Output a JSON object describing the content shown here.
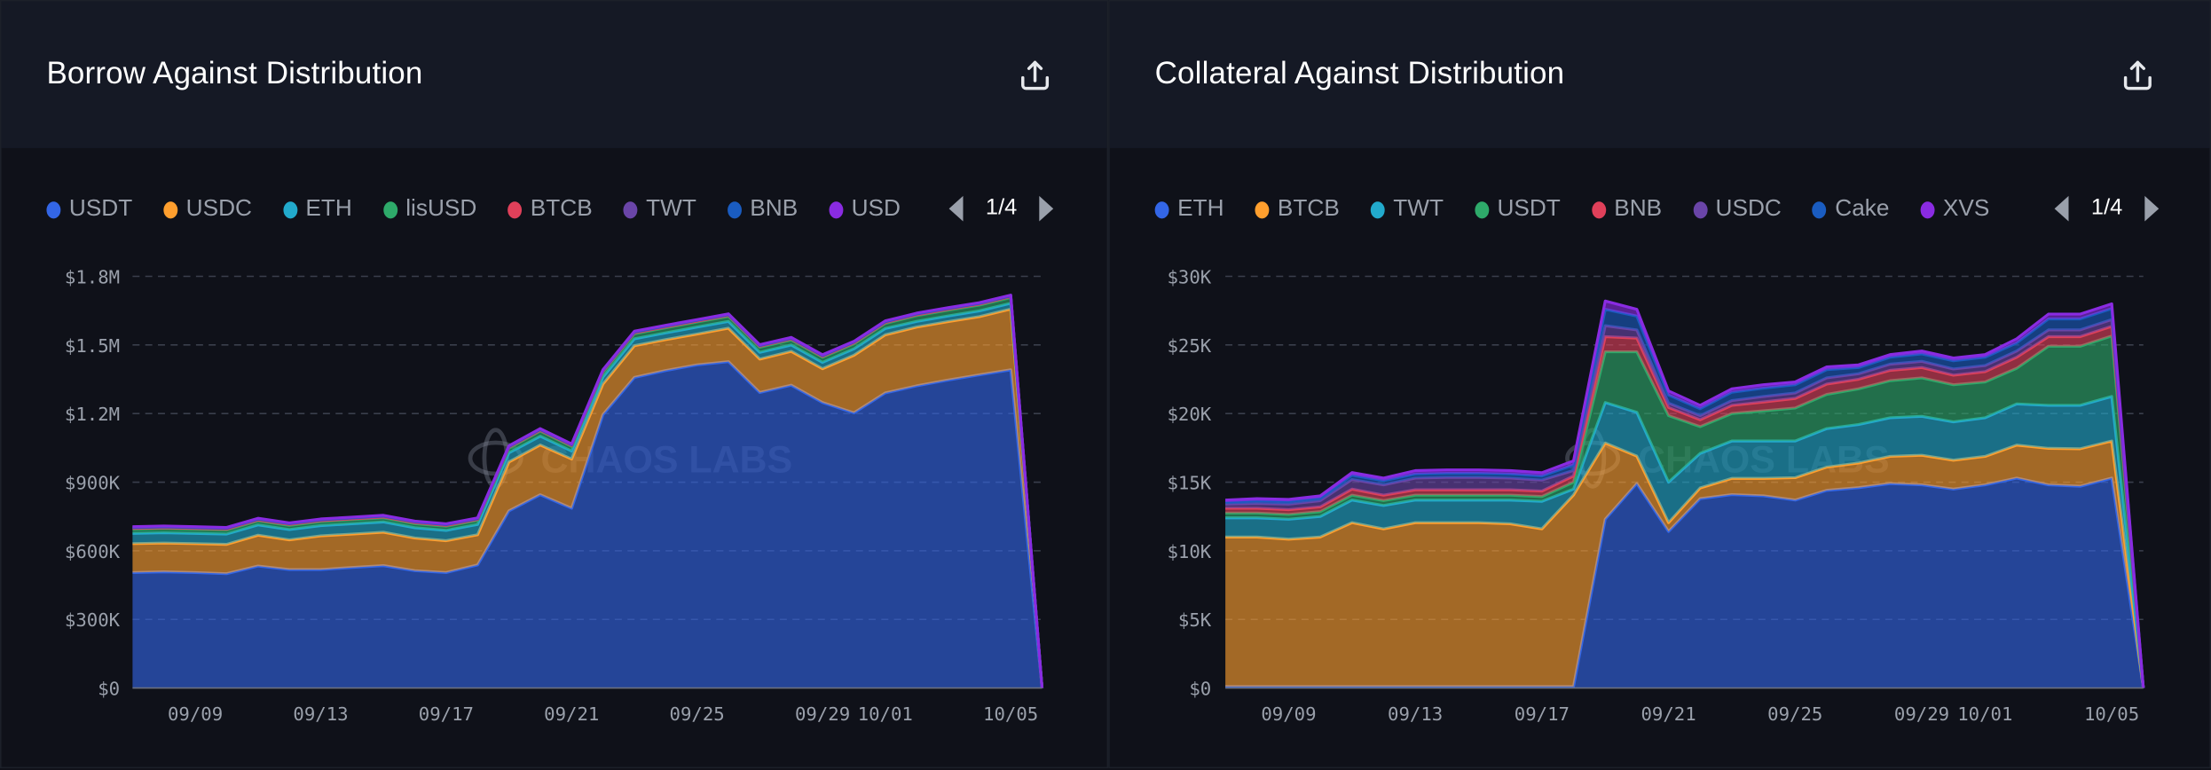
{
  "panels": [
    {
      "title": "Borrow Against Distribution",
      "export_icon": "share-upload-icon",
      "legend_page": "1/4",
      "watermark": "CHAOS LABS",
      "chart_data": {
        "type": "area",
        "stacked": true,
        "x": [
          "09/07",
          "09/08",
          "09/09",
          "09/10",
          "09/11",
          "09/12",
          "09/13",
          "09/14",
          "09/15",
          "09/16",
          "09/17",
          "09/18",
          "09/19",
          "09/20",
          "09/21",
          "09/22",
          "09/23",
          "09/24",
          "09/25",
          "09/26",
          "09/27",
          "09/28",
          "09/29",
          "09/30",
          "10/01",
          "10/02",
          "10/03",
          "10/04",
          "10/05",
          "10/06"
        ],
        "xticks": [
          "09/09",
          "09/13",
          "09/17",
          "09/21",
          "09/25",
          "09/29",
          "10/01",
          "10/05"
        ],
        "yticks": [
          0,
          300000,
          600000,
          900000,
          1200000,
          1500000,
          1800000
        ],
        "ytick_labels": [
          "$0",
          "$300K",
          "$600K",
          "$900K",
          "$1.2M",
          "$1.5M",
          "$1.8M"
        ],
        "ylim": [
          0,
          1800000
        ],
        "grid": true,
        "legend": "top",
        "series": [
          {
            "name": "USDT",
            "color": "#3366e6",
            "values": [
              505000,
              508000,
              505000,
              500000,
              533000,
              518000,
              518000,
              527000,
              535000,
              513000,
              505000,
              538000,
              774000,
              845000,
              786000,
              1195000,
              1358000,
              1388000,
              1413000,
              1427000,
              1292000,
              1324000,
              1248000,
              1203000,
              1290000,
              1321000,
              1346000,
              1369000,
              1391000,
              0
            ]
          },
          {
            "name": "USDC",
            "color": "#ff9f2e",
            "values": [
              126000,
              126000,
              126000,
              128000,
              135000,
              130000,
              147000,
              146000,
              146000,
              143000,
              139000,
              132000,
              214000,
              218000,
              215000,
              134000,
              139000,
              135000,
              135000,
              146000,
              146000,
              148000,
              148000,
              252000,
              254000,
              257000,
              256000,
              255000,
              266000,
              0
            ]
          },
          {
            "name": "ETH",
            "color": "#22aacc",
            "values": [
              45000,
              45000,
              45000,
              45000,
              45000,
              45000,
              45000,
              45000,
              45000,
              45000,
              45000,
              45000,
              40000,
              38000,
              35000,
              30000,
              30000,
              30000,
              30000,
              30000,
              30000,
              28000,
              28000,
              28000,
              28000,
              25000,
              25000,
              25000,
              25000,
              0
            ]
          },
          {
            "name": "lisUSD",
            "color": "#2eaa6a",
            "values": [
              18000,
              18000,
              18000,
              18000,
              18000,
              18000,
              18000,
              18000,
              18000,
              18000,
              18000,
              18000,
              20000,
              22000,
              20000,
              22000,
              22000,
              22000,
              22000,
              22000,
              22000,
              22000,
              22000,
              22000,
              22000,
              25000,
              25000,
              25000,
              25000,
              0
            ]
          },
          {
            "name": "BTCB",
            "color": "#e0405a",
            "values": [
              4000,
              4000,
              4000,
              4000,
              4000,
              4000,
              4000,
              4000,
              4000,
              4000,
              4000,
              4000,
              4000,
              4000,
              4000,
              4000,
              4000,
              4000,
              4000,
              4000,
              4000,
              4000,
              4000,
              4000,
              4000,
              4000,
              4000,
              4000,
              4000,
              0
            ]
          },
          {
            "name": "TWT",
            "color": "#6a45a8",
            "values": [
              3000,
              3000,
              3000,
              3000,
              3000,
              3000,
              3000,
              3000,
              3000,
              3000,
              3000,
              3000,
              3000,
              3000,
              3000,
              3000,
              3000,
              3000,
              3000,
              3000,
              3000,
              3000,
              3000,
              3000,
              3000,
              3000,
              3000,
              3000,
              3000,
              0
            ]
          },
          {
            "name": "BNB",
            "color": "#1a5cc0",
            "values": [
              2000,
              2000,
              2000,
              2000,
              2000,
              2000,
              2000,
              2000,
              2000,
              2000,
              2000,
              2000,
              2000,
              2000,
              2000,
              2000,
              2000,
              2000,
              2000,
              2000,
              2000,
              2000,
              2000,
              2000,
              2000,
              2000,
              2000,
              2000,
              2000,
              0
            ]
          },
          {
            "name": "USD",
            "color": "#8a2be2",
            "values": [
              2000,
              2000,
              2000,
              2000,
              2000,
              2000,
              2000,
              2000,
              2000,
              2000,
              2000,
              2000,
              2000,
              2000,
              2000,
              2000,
              2000,
              2000,
              2000,
              2000,
              2000,
              2000,
              2000,
              2000,
              2000,
              2000,
              2000,
              2000,
              2000,
              0
            ]
          }
        ]
      }
    },
    {
      "title": "Collateral Against Distribution",
      "export_icon": "share-upload-icon",
      "legend_page": "1/4",
      "watermark": "CHAOS LABS",
      "chart_data": {
        "type": "area",
        "stacked": true,
        "x": [
          "09/07",
          "09/08",
          "09/09",
          "09/10",
          "09/11",
          "09/12",
          "09/13",
          "09/14",
          "09/15",
          "09/16",
          "09/17",
          "09/18",
          "09/19",
          "09/20",
          "09/21",
          "09/22",
          "09/23",
          "09/24",
          "09/25",
          "09/26",
          "09/27",
          "09/28",
          "09/29",
          "09/30",
          "10/01",
          "10/02",
          "10/03",
          "10/04",
          "10/05",
          "10/06"
        ],
        "xticks": [
          "09/09",
          "09/13",
          "09/17",
          "09/21",
          "09/25",
          "09/29",
          "10/01",
          "10/05"
        ],
        "yticks": [
          0,
          5000,
          10000,
          15000,
          20000,
          25000,
          30000
        ],
        "ytick_labels": [
          "$0",
          "$5K",
          "$10K",
          "$15K",
          "$20K",
          "$25K",
          "$30K"
        ],
        "ylim": [
          0,
          30000
        ],
        "grid": true,
        "legend": "top",
        "series": [
          {
            "name": "ETH",
            "color": "#3366e6",
            "values": [
              100,
              100,
              100,
              100,
              100,
              100,
              100,
              100,
              100,
              100,
              100,
              100,
              12300,
              14900,
              11400,
              13800,
              14100,
              14000,
              13700,
              14400,
              14600,
              14900,
              14800,
              14500,
              14800,
              15300,
              14800,
              14700,
              15300,
              0
            ]
          },
          {
            "name": "BTCB",
            "color": "#ff9f2e",
            "values": [
              10900,
              10900,
              10750,
              10900,
              11950,
              11500,
              11950,
              11950,
              11950,
              11870,
              11500,
              13970,
              5560,
              2000,
              650,
              780,
              1180,
              1280,
              1630,
              1700,
              1800,
              1980,
              2160,
              2100,
              2080,
              2400,
              2670,
              2740,
              2700,
              0
            ]
          },
          {
            "name": "TWT",
            "color": "#22aacc",
            "values": [
              1400,
              1400,
              1450,
              1500,
              1650,
              1700,
              1650,
              1650,
              1650,
              1730,
              2000,
              430,
              2940,
              3200,
              2950,
              2520,
              2720,
              2720,
              2670,
              2800,
              2800,
              2820,
              2840,
              2800,
              2820,
              3000,
              3130,
              3160,
              3250,
              0
            ]
          },
          {
            "name": "USDT",
            "color": "#2eaa6a",
            "values": [
              350,
              350,
              350,
              350,
              350,
              350,
              350,
              350,
              350,
              350,
              350,
              500,
              3700,
              4400,
              4850,
              1950,
              2000,
              2200,
              2400,
              2500,
              2600,
              2700,
              2800,
              2700,
              2600,
              2600,
              4300,
              4300,
              4400,
              0
            ]
          },
          {
            "name": "BNB",
            "color": "#e0405a",
            "values": [
              350,
              350,
              350,
              350,
              450,
              400,
              400,
              400,
              400,
              400,
              400,
              450,
              1100,
              1000,
              600,
              500,
              600,
              650,
              700,
              750,
              700,
              750,
              750,
              700,
              750,
              800,
              700,
              700,
              700,
              0
            ]
          },
          {
            "name": "USDC",
            "color": "#6a45a8",
            "values": [
              300,
              350,
              400,
              450,
              700,
              750,
              850,
              900,
              900,
              850,
              800,
              400,
              800,
              600,
              300,
              300,
              350,
              400,
              400,
              450,
              400,
              450,
              450,
              450,
              450,
              450,
              500,
              500,
              500,
              0
            ]
          },
          {
            "name": "Cake",
            "color": "#1a5cc0",
            "values": [
              150,
              200,
              200,
              200,
              300,
              300,
              300,
              300,
              300,
              300,
              300,
              400,
              1200,
              1000,
              600,
              500,
              600,
              600,
              600,
              600,
              450,
              500,
              550,
              600,
              600,
              600,
              800,
              800,
              800,
              0
            ]
          },
          {
            "name": "XVS",
            "color": "#8a2be2",
            "values": [
              150,
              150,
              150,
              150,
              200,
              200,
              240,
              240,
              240,
              240,
              240,
              300,
              600,
              500,
              300,
              250,
              250,
              250,
              200,
              200,
              200,
              200,
              200,
              200,
              200,
              300,
              350,
              350,
              350,
              0
            ]
          }
        ]
      }
    }
  ]
}
